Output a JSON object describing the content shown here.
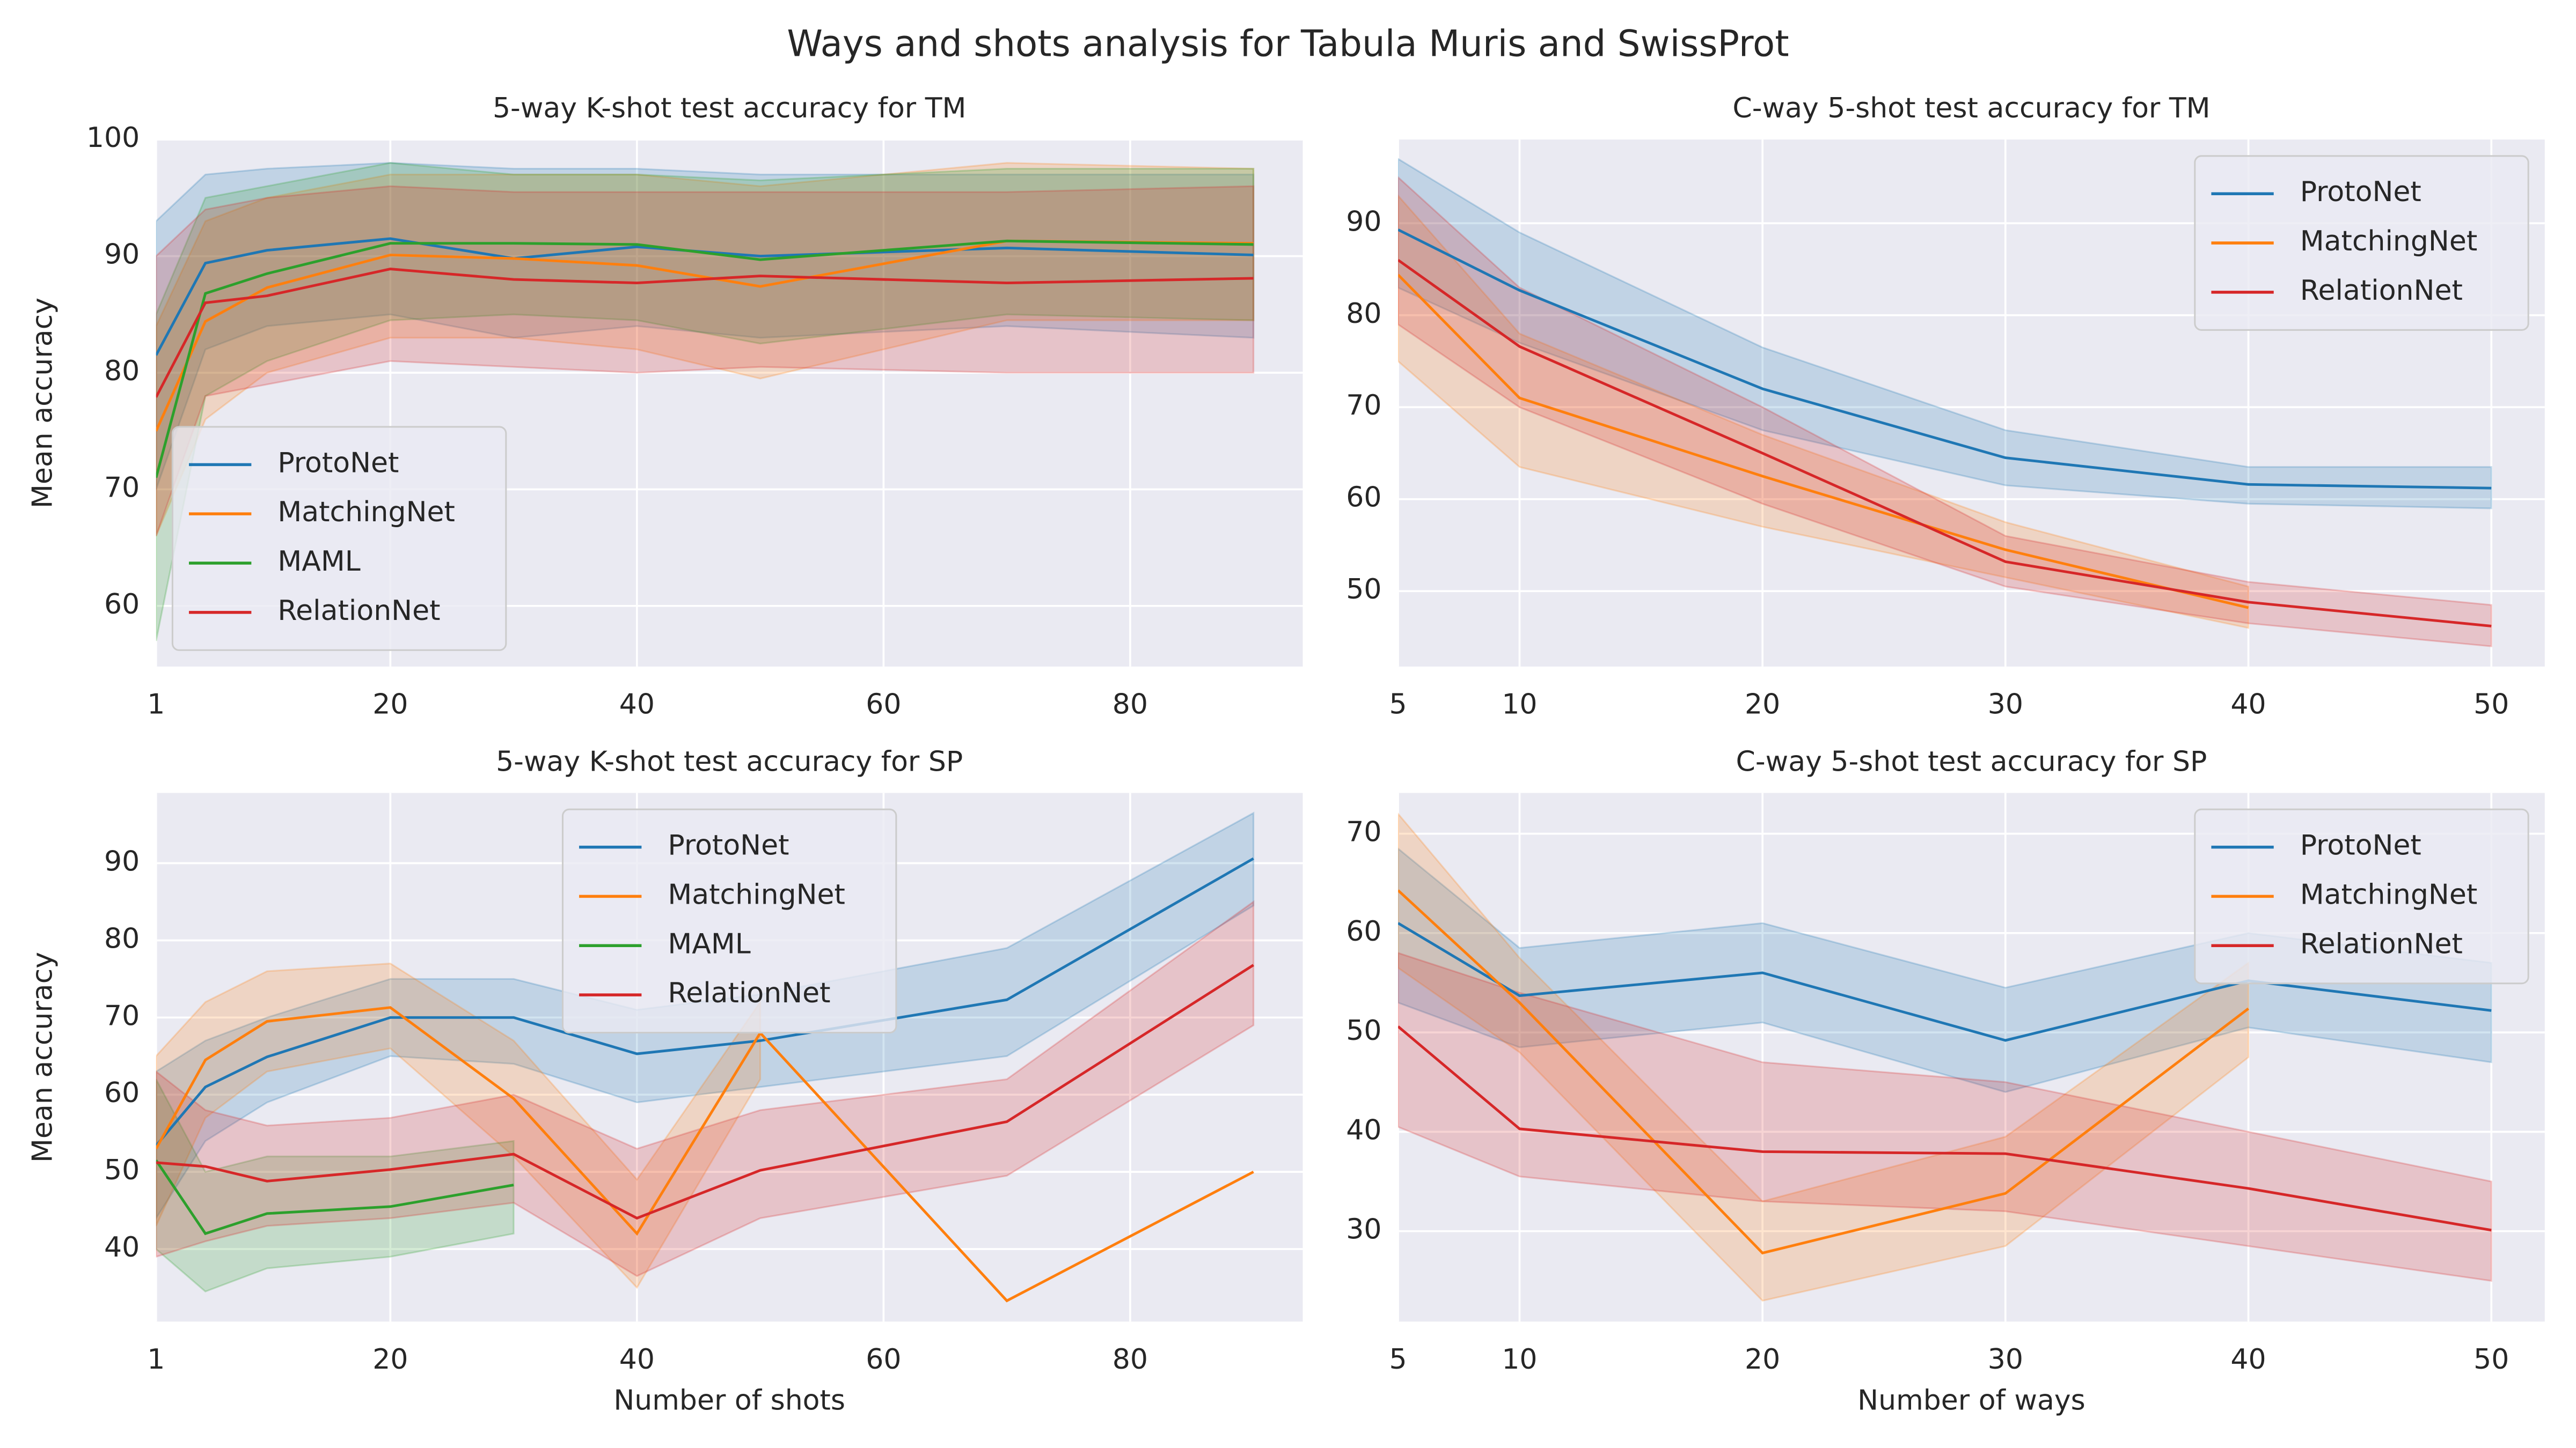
{
  "title": "Ways and shots analysis for Tabula Muris and SwissProt",
  "chart_data": [
    {
      "type": "line",
      "title": "5-way K-shot test accuracy for TM",
      "ylabel": "Mean accuracy",
      "x": [
        1,
        5,
        10,
        20,
        30,
        40,
        50,
        70,
        90
      ],
      "xlim": [
        1,
        94
      ],
      "ylim": [
        54.8,
        100
      ],
      "xticks": [
        1,
        20,
        40,
        60,
        80
      ],
      "yticks": [
        60,
        70,
        80,
        90,
        100
      ],
      "grid": true,
      "legend": "lower left",
      "series": [
        {
          "name": "ProtoNet",
          "color": "#1f77b4",
          "values": [
            81.5,
            89.4,
            90.5,
            91.5,
            89.8,
            90.8,
            90,
            90.7,
            90.1
          ],
          "upper": [
            93,
            97,
            97.5,
            98,
            97.5,
            97.5,
            97,
            97,
            97
          ],
          "lower": [
            70,
            82,
            84,
            85,
            83,
            84,
            83,
            84,
            83
          ]
        },
        {
          "name": "MatchingNet",
          "color": "#ff7f0e",
          "values": [
            75,
            84.4,
            87.3,
            90.1,
            89.8,
            89.2,
            87.4,
            91.3,
            91.1
          ],
          "upper": [
            84,
            93,
            95,
            97,
            97,
            97,
            96,
            98,
            97.5
          ],
          "lower": [
            66,
            76,
            80,
            83,
            83,
            82,
            79.5,
            84.5,
            84.5
          ]
        },
        {
          "name": "MAML",
          "color": "#2ca02c",
          "values": [
            71,
            86.8,
            88.5,
            91.1,
            91.1,
            91,
            89.7,
            91.3,
            91
          ],
          "upper": [
            85,
            95,
            96,
            98,
            97,
            97,
            96.5,
            97.5,
            97.5
          ],
          "lower": [
            57,
            78,
            81,
            84.5,
            85,
            84.5,
            82.5,
            85,
            84.5
          ]
        },
        {
          "name": "RelationNet",
          "color": "#d62728",
          "values": [
            77.9,
            86,
            86.6,
            88.9,
            88,
            87.7,
            88.3,
            87.7,
            88.1
          ],
          "upper": [
            90,
            94,
            95,
            96,
            95.5,
            95.5,
            95.5,
            95.5,
            96
          ],
          "lower": [
            66,
            78,
            79,
            81,
            80.5,
            80,
            80.5,
            80,
            80
          ]
        }
      ]
    },
    {
      "type": "line",
      "title": "C-way 5-shot test accuracy for TM",
      "x": [
        5,
        10,
        20,
        30,
        40,
        50
      ],
      "xlim": [
        5,
        52.2
      ],
      "ylim": [
        41.8,
        99.1
      ],
      "xticks": [
        5,
        10,
        20,
        30,
        40,
        50
      ],
      "yticks": [
        50,
        60,
        70,
        80,
        90
      ],
      "grid": true,
      "legend": "upper right",
      "series": [
        {
          "name": "ProtoNet",
          "color": "#1f77b4",
          "values": [
            89.3,
            82.7,
            72,
            64.5,
            61.6,
            61.2
          ],
          "upper": [
            97,
            89,
            76.5,
            67.5,
            63.5,
            63.5
          ],
          "lower": [
            83,
            77,
            67.5,
            61.5,
            59.5,
            59
          ]
        },
        {
          "name": "MatchingNet",
          "color": "#ff7f0e",
          "values": [
            84.4,
            71,
            62.5,
            54.5,
            48.2,
            null
          ],
          "upper": [
            93,
            78,
            67,
            57.5,
            50.5,
            null
          ],
          "lower": [
            75,
            63.5,
            57,
            51.5,
            46,
            null
          ]
        },
        {
          "name": "RelationNet",
          "color": "#d62728",
          "values": [
            86,
            76.6,
            65,
            53.2,
            48.8,
            46.2
          ],
          "upper": [
            95,
            83,
            70,
            56,
            51,
            48.5
          ],
          "lower": [
            79,
            70,
            59.5,
            50.5,
            46.5,
            44
          ]
        }
      ]
    },
    {
      "type": "line",
      "title": "5-way K-shot test accuracy for SP",
      "ylabel": "Mean accuracy",
      "xlabel": "Number of shots",
      "x": [
        1,
        5,
        10,
        20,
        30,
        40,
        50,
        70,
        90
      ],
      "xlim": [
        1,
        94
      ],
      "ylim": [
        30.6,
        99.1
      ],
      "xticks": [
        1,
        20,
        40,
        60,
        80
      ],
      "yticks": [
        40,
        50,
        60,
        70,
        80,
        90
      ],
      "grid": true,
      "legend": "upper center",
      "series": [
        {
          "name": "ProtoNet",
          "color": "#1f77b4",
          "values": [
            53.4,
            61,
            64.9,
            70,
            70,
            65.3,
            67,
            72.3,
            90.6
          ],
          "upper": [
            63,
            67,
            70,
            75,
            75,
            71,
            73,
            79,
            96.5
          ],
          "lower": [
            44,
            54,
            59,
            65,
            64,
            59,
            61,
            65,
            84.5
          ]
        },
        {
          "name": "MatchingNet",
          "color": "#ff7f0e",
          "values": [
            53,
            64.5,
            69.5,
            71.3,
            59.5,
            42,
            68,
            33.3,
            50
          ],
          "upper": [
            65,
            72,
            76,
            77,
            67,
            49,
            72,
            null,
            null
          ],
          "lower": [
            43,
            57,
            63,
            66,
            52,
            35,
            62,
            null,
            null
          ]
        },
        {
          "name": "MAML",
          "color": "#2ca02c",
          "values": [
            51.5,
            42,
            44.6,
            45.5,
            48.3,
            null,
            null,
            null,
            null
          ],
          "upper": [
            62,
            50,
            52,
            52,
            54,
            null,
            null,
            null,
            null
          ],
          "lower": [
            40,
            34.5,
            37.5,
            39,
            42,
            null,
            null,
            null,
            null
          ]
        },
        {
          "name": "RelationNet",
          "color": "#d62728",
          "values": [
            51.2,
            50.7,
            48.8,
            50.3,
            52.3,
            44,
            50.2,
            56.5,
            76.8
          ],
          "upper": [
            63,
            58,
            56,
            57,
            60,
            53,
            58,
            62,
            85
          ],
          "lower": [
            39,
            41,
            43,
            44,
            46,
            36.5,
            44,
            49.5,
            69
          ]
        }
      ]
    },
    {
      "type": "line",
      "title": "C-way 5-shot test accuracy for SP",
      "xlabel": "Number of ways",
      "x": [
        5,
        10,
        20,
        30,
        40,
        50
      ],
      "xlim": [
        5,
        52.2
      ],
      "ylim": [
        20.9,
        74.1
      ],
      "xticks": [
        5,
        10,
        20,
        30,
        40,
        50
      ],
      "yticks": [
        30,
        40,
        50,
        60,
        70
      ],
      "grid": true,
      "legend": "upper right",
      "series": [
        {
          "name": "ProtoNet",
          "color": "#1f77b4",
          "values": [
            61,
            53.7,
            56,
            49.2,
            55.2,
            52.2
          ],
          "upper": [
            68.5,
            58.5,
            61,
            54.5,
            60,
            57
          ],
          "lower": [
            53,
            48.5,
            51,
            44,
            50.5,
            47
          ]
        },
        {
          "name": "MatchingNet",
          "color": "#ff7f0e",
          "values": [
            64.3,
            53,
            27.8,
            33.8,
            52.4,
            null
          ],
          "upper": [
            72,
            57.5,
            33,
            39.5,
            57,
            null
          ],
          "lower": [
            56.5,
            48,
            23,
            28.5,
            47.5,
            null
          ]
        },
        {
          "name": "RelationNet",
          "color": "#d62728",
          "values": [
            50.6,
            40.3,
            38,
            37.8,
            34.3,
            30.1
          ],
          "upper": [
            58,
            54,
            47,
            45,
            40,
            35
          ],
          "lower": [
            40.5,
            35.5,
            33,
            32,
            28.5,
            25
          ]
        }
      ]
    }
  ]
}
